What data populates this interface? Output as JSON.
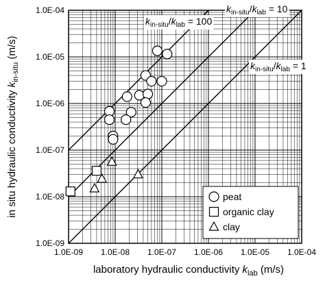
{
  "chart_data": {
    "type": "scatter",
    "scale": {
      "x": "log",
      "y": "log"
    },
    "xlim": [
      1e-09,
      0.0001
    ],
    "ylim": [
      1e-09,
      0.0001
    ],
    "grid": true,
    "x_tick_labels": [
      "1.0E-09",
      "1.0E-08",
      "1.0E-07",
      "1.0E-06",
      "1.0E-05",
      "1.0E-04"
    ],
    "y_tick_labels": [
      "1.0E-09",
      "1.0E-08",
      "1.0E-07",
      "1.0E-06",
      "1.0E-05",
      "1.0E-04"
    ],
    "xlabel": {
      "main": "laboratory hydraulic conductivity ",
      "k": "k",
      "sub": "lab",
      "unit": " (m/s)"
    },
    "ylabel": {
      "main": "in situ hydraulic conductivity  ",
      "k": "k",
      "sub": "in-situ",
      "unit": " (m/s)"
    },
    "ratio_lines": [
      {
        "ratio": 100,
        "label": {
          "k1": "k",
          "s1": "in-situ",
          "slash": "/",
          "k2": "k",
          "s2": "lab",
          "tail": " = 100"
        }
      },
      {
        "ratio": 10,
        "label": {
          "k1": "k",
          "s1": "in-situ",
          "slash": "/",
          "k2": "k",
          "s2": "lab",
          "tail": " = 10"
        }
      },
      {
        "ratio": 1,
        "label": {
          "k1": "k",
          "s1": "in-situ",
          "slash": "/",
          "k2": "k",
          "s2": "lab",
          "tail": " = 1"
        }
      }
    ],
    "legend": {
      "placement": "bottom-right",
      "entries": [
        "peat",
        "organic clay",
        "clay"
      ]
    },
    "series": [
      {
        "name": "peat",
        "marker": "circle",
        "points": [
          [
            8e-08,
            1.35e-05
          ],
          [
            1.3e-07,
            1.15e-05
          ],
          [
            4.5e-08,
            4e-06
          ],
          [
            6e-08,
            3e-06
          ],
          [
            1e-07,
            3e-06
          ],
          [
            1.8e-08,
            1.4e-06
          ],
          [
            3.3e-08,
            1.5e-06
          ],
          [
            5e-08,
            1.6e-06
          ],
          [
            4.5e-08,
            1.05e-06
          ],
          [
            2.2e-08,
            6.5e-07
          ],
          [
            1.7e-08,
            4.5e-07
          ],
          [
            7.5e-09,
            6.8e-07
          ],
          [
            7.5e-09,
            4.5e-07
          ],
          [
            9e-09,
            2e-07
          ],
          [
            9e-09,
            1.7e-07
          ]
        ]
      },
      {
        "name": "organic clay",
        "marker": "square",
        "points": [
          [
            1.1e-09,
            1.3e-08
          ],
          [
            4e-09,
            3.6e-08
          ]
        ]
      },
      {
        "name": "clay",
        "marker": "triangle",
        "points": [
          [
            8.5e-09,
            5.6e-08
          ],
          [
            5.2e-09,
            2.4e-08
          ],
          [
            3.6e-09,
            1.5e-08
          ],
          [
            3.1e-08,
            3e-08
          ]
        ]
      }
    ]
  }
}
